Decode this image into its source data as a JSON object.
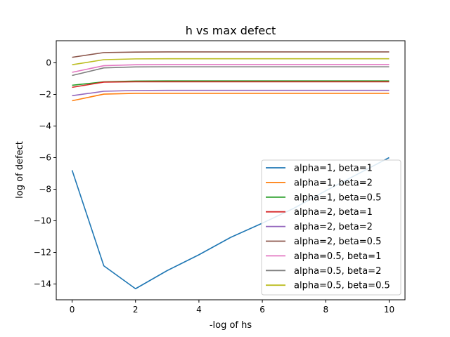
{
  "chart_data": {
    "type": "line",
    "title": "h vs max defect",
    "xlabel": "-log of hs",
    "ylabel": "log of defect",
    "xlim": [
      -0.5,
      10.5
    ],
    "ylim": [
      -15.0,
      1.4
    ],
    "xticks": [
      0,
      2,
      4,
      6,
      8,
      10
    ],
    "yticks": [
      0,
      -2,
      -4,
      -6,
      -8,
      -10,
      -12,
      -14
    ],
    "grid": false,
    "legend_position": "lower-right",
    "x": [
      0,
      1,
      2,
      3,
      4,
      5,
      6,
      7,
      8,
      9,
      10
    ],
    "series": [
      {
        "name": "alpha=1, beta=1",
        "color": "#1f77b4",
        "values": [
          -6.8,
          -12.85,
          -14.3,
          -13.15,
          -12.15,
          -11.05,
          -10.15,
          -9.2,
          -8.1,
          -7.05,
          -6.0
        ]
      },
      {
        "name": "alpha=1, beta=2",
        "color": "#ff7f0e",
        "values": [
          -2.4,
          -1.98,
          -1.93,
          -1.93,
          -1.93,
          -1.93,
          -1.93,
          -1.93,
          -1.93,
          -1.93,
          -1.93
        ]
      },
      {
        "name": "alpha=1, beta=0.5",
        "color": "#2ca02c",
        "values": [
          -1.42,
          -1.2,
          -1.15,
          -1.14,
          -1.14,
          -1.14,
          -1.14,
          -1.14,
          -1.14,
          -1.14,
          -1.14
        ]
      },
      {
        "name": "alpha=2, beta=1",
        "color": "#d62728",
        "values": [
          -1.55,
          -1.22,
          -1.2,
          -1.2,
          -1.2,
          -1.2,
          -1.2,
          -1.2,
          -1.2,
          -1.2,
          -1.2
        ]
      },
      {
        "name": "alpha=2, beta=2",
        "color": "#9467bd",
        "values": [
          -2.08,
          -1.8,
          -1.75,
          -1.74,
          -1.74,
          -1.74,
          -1.74,
          -1.74,
          -1.74,
          -1.74,
          -1.74
        ]
      },
      {
        "name": "alpha=2, beta=0.5",
        "color": "#8c564b",
        "values": [
          0.35,
          0.65,
          0.68,
          0.69,
          0.69,
          0.69,
          0.69,
          0.69,
          0.69,
          0.69,
          0.69
        ]
      },
      {
        "name": "alpha=0.5, beta=1",
        "color": "#e377c2",
        "values": [
          -0.6,
          -0.18,
          -0.12,
          -0.11,
          -0.11,
          -0.11,
          -0.11,
          -0.11,
          -0.11,
          -0.11,
          -0.11
        ]
      },
      {
        "name": "alpha=0.5, beta=2",
        "color": "#7f7f7f",
        "values": [
          -0.8,
          -0.32,
          -0.26,
          -0.25,
          -0.25,
          -0.25,
          -0.25,
          -0.25,
          -0.25,
          -0.25,
          -0.25
        ]
      },
      {
        "name": "alpha=0.5, beta=0.5",
        "color": "#bcbd22",
        "values": [
          -0.12,
          0.2,
          0.25,
          0.26,
          0.26,
          0.26,
          0.26,
          0.26,
          0.26,
          0.26,
          0.26
        ]
      }
    ]
  }
}
